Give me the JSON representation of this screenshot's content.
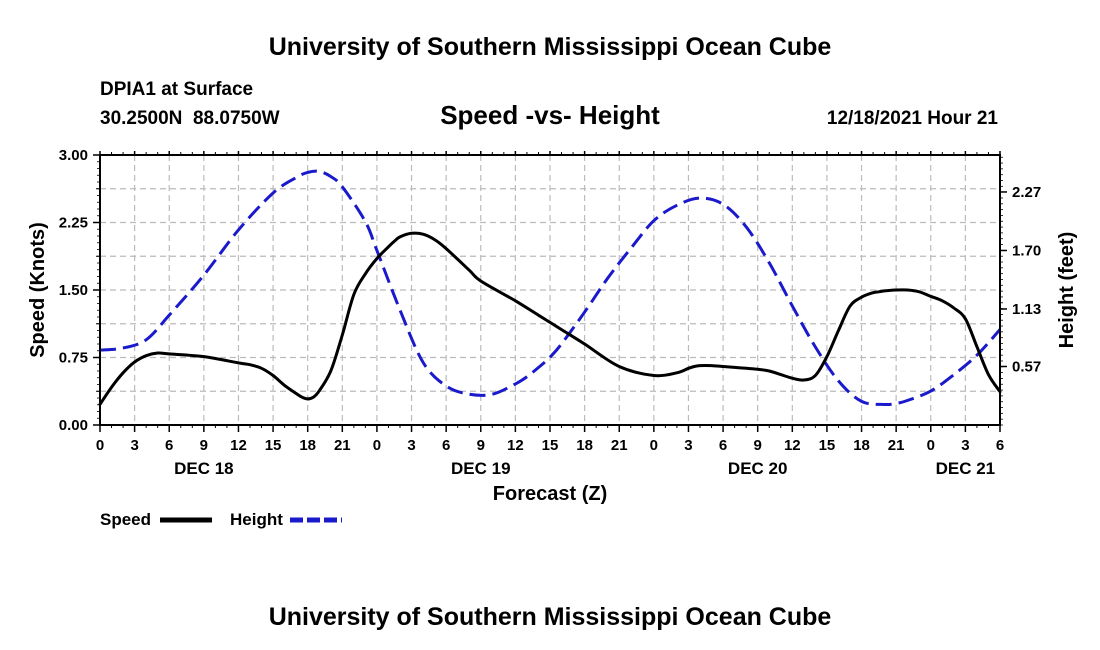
{
  "header": {
    "main_title": "University of Southern Mississippi Ocean Cube",
    "station": "DPIA1 at Surface",
    "location": "30.2500N  88.0750W",
    "plot_title": "Speed -vs- Height",
    "date": "12/18/2021 Hour 21"
  },
  "footer": {
    "title": "University of Southern Mississippi Ocean Cube"
  },
  "colors": {
    "speed": "#000000",
    "height": "#1a1acc",
    "grid": "#bbbbbb"
  },
  "chart_data": {
    "type": "line",
    "title": "Speed -vs- Height",
    "xlabel": "Forecast (Z)",
    "ylabel": "Speed (Knots)",
    "y2label": "Height (feet)",
    "xlim": [
      0,
      78
    ],
    "ylim": [
      0,
      3.0
    ],
    "y2lim": [
      0,
      2.63
    ],
    "x_ticks": [
      0,
      3,
      6,
      9,
      12,
      15,
      18,
      21,
      24,
      27,
      30,
      33,
      36,
      39,
      42,
      45,
      48,
      51,
      54,
      57,
      60,
      63,
      66,
      69,
      72,
      75,
      78
    ],
    "x_tick_labels": [
      "0",
      "3",
      "6",
      "9",
      "12",
      "15",
      "18",
      "21",
      "0",
      "3",
      "6",
      "9",
      "12",
      "15",
      "18",
      "21",
      "0",
      "3",
      "6",
      "9",
      "12",
      "15",
      "18",
      "21",
      "0",
      "3",
      "6"
    ],
    "day_labels": [
      {
        "x": 9,
        "label": "DEC 18"
      },
      {
        "x": 33,
        "label": "DEC 19"
      },
      {
        "x": 57,
        "label": "DEC 20"
      },
      {
        "x": 75,
        "label": "DEC 21"
      }
    ],
    "y_ticks": [
      "0.00",
      "0.75",
      "1.50",
      "2.25",
      "3.00"
    ],
    "y2_ticks": [
      "0.57",
      "1.13",
      "1.70",
      "2.27"
    ],
    "grid": true,
    "legend_position": "bottom-left",
    "series": [
      {
        "name": "Speed",
        "axis": "left",
        "style": "solid",
        "x": [
          0,
          1,
          2,
          3,
          4,
          5,
          6,
          9,
          12,
          13,
          14,
          15,
          16,
          17,
          17.5,
          18,
          18.5,
          19,
          20,
          21,
          22,
          23,
          24,
          25,
          25.5,
          26,
          27,
          28,
          29,
          30,
          32,
          33,
          36,
          38,
          39,
          40,
          42,
          45,
          48,
          50,
          51,
          51.5,
          52,
          53,
          54,
          55,
          56,
          57,
          58,
          59,
          60,
          61,
          62,
          63,
          64,
          65,
          66,
          67,
          67.5,
          68,
          69,
          70,
          71,
          72,
          73,
          74,
          75,
          76,
          77,
          78
        ],
        "values": [
          0.23,
          0.42,
          0.58,
          0.7,
          0.77,
          0.8,
          0.79,
          0.76,
          0.69,
          0.67,
          0.63,
          0.55,
          0.44,
          0.35,
          0.31,
          0.29,
          0.31,
          0.38,
          0.6,
          1.0,
          1.45,
          1.68,
          1.85,
          1.98,
          2.04,
          2.09,
          2.13,
          2.12,
          2.06,
          1.96,
          1.72,
          1.6,
          1.38,
          1.22,
          1.14,
          1.06,
          0.9,
          0.65,
          0.55,
          0.58,
          0.63,
          0.65,
          0.66,
          0.66,
          0.65,
          0.64,
          0.63,
          0.62,
          0.6,
          0.56,
          0.52,
          0.5,
          0.55,
          0.76,
          1.05,
          1.32,
          1.42,
          1.47,
          1.48,
          1.49,
          1.5,
          1.5,
          1.48,
          1.43,
          1.38,
          1.3,
          1.18,
          0.87,
          0.56,
          0.37
        ]
      },
      {
        "name": "Height",
        "axis": "right",
        "style": "dashed",
        "x": [
          0,
          2,
          4,
          6,
          9,
          12,
          15,
          17,
          18,
          19,
          20,
          21,
          23,
          24,
          26,
          28,
          30,
          32,
          34,
          36,
          37,
          38,
          39,
          40,
          42,
          44,
          46,
          48,
          50,
          52,
          54,
          56,
          58,
          60,
          62,
          64,
          66,
          68,
          69,
          70,
          72,
          74,
          76,
          78
        ],
        "values": [
          0.73,
          0.75,
          0.83,
          1.07,
          1.46,
          1.9,
          2.26,
          2.41,
          2.46,
          2.47,
          2.42,
          2.32,
          1.98,
          1.7,
          1.12,
          0.61,
          0.38,
          0.3,
          0.3,
          0.4,
          0.47,
          0.56,
          0.66,
          0.79,
          1.1,
          1.43,
          1.72,
          1.99,
          2.14,
          2.21,
          2.15,
          1.93,
          1.58,
          1.16,
          0.76,
          0.43,
          0.23,
          0.2,
          0.21,
          0.24,
          0.33,
          0.49,
          0.68,
          0.93
        ]
      }
    ]
  }
}
